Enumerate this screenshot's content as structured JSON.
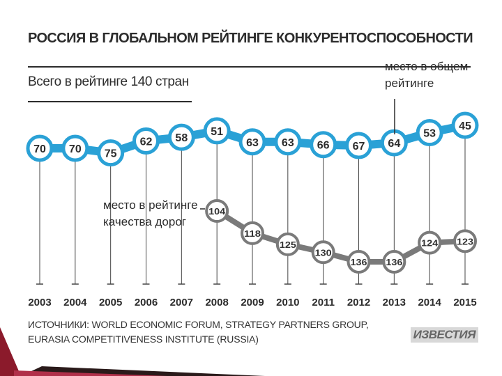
{
  "chart_data": {
    "type": "line",
    "title": "РОССИЯ В ГЛОБАЛЬНОМ РЕЙТИНГЕ КОНКУРЕНТОСПОСОБНОСТИ",
    "subtitle": "Всего в рейтинге 140 стран",
    "categories": [
      "2003",
      "2004",
      "2005",
      "2006",
      "2007",
      "2008",
      "2009",
      "2010",
      "2011",
      "2012",
      "2013",
      "2014",
      "2015"
    ],
    "series": [
      {
        "name": "место в общем рейтинге",
        "color": "#2aa1d6",
        "values": [
          70,
          70,
          75,
          62,
          58,
          51,
          63,
          63,
          66,
          67,
          64,
          53,
          45
        ],
        "labels": [
          "70",
          "70",
          "75",
          "62",
          "58",
          "51",
          "63",
          "63",
          "66",
          "67",
          "64",
          "53",
          "45"
        ]
      },
      {
        "name": "место в рейтинге качества дорог",
        "color": "#7a7a7a",
        "values": [
          null,
          null,
          null,
          null,
          null,
          104,
          118,
          125,
          130,
          136,
          136,
          124,
          123
        ],
        "labels": [
          "",
          "",
          "",
          "",
          "",
          "104",
          "118",
          "125",
          "130",
          "136",
          "136",
          "124",
          "123"
        ]
      }
    ],
    "annotations": {
      "overall_label": [
        "место в общем",
        "рейтинге"
      ],
      "roads_label": [
        "место в рейтинге",
        "качества дорог"
      ]
    },
    "xlabel": "",
    "ylabel": "",
    "grid": false,
    "inverted_y": true
  },
  "footer": {
    "sources_line1": "ИСТОЧНИКИ: WORLD ECONOMIC FORUM, STRATEGY PARTNERS GROUP,",
    "sources_line2": "EURASIA COMPETITIVENESS INSTITUTE (RUSSIA)",
    "logo": "ИЗВЕСТИЯ"
  }
}
